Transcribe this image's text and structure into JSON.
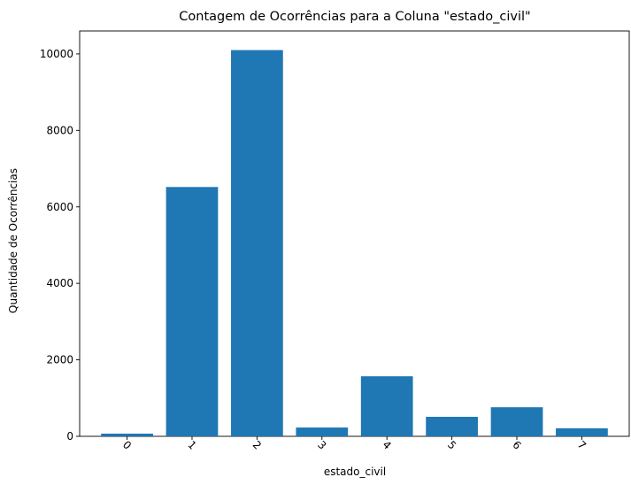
{
  "chart_data": {
    "type": "bar",
    "title": "Contagem de Ocorrências para a Coluna \"estado_civil\"",
    "xlabel": "estado_civil",
    "ylabel": "Quantidade de Ocorrências",
    "categories": [
      "0",
      "1",
      "2",
      "3",
      "4",
      "5",
      "6",
      "7"
    ],
    "values": [
      70,
      6520,
      10100,
      230,
      1570,
      510,
      760,
      210
    ],
    "ylim": [
      0,
      10600
    ],
    "yticks": [
      0,
      2000,
      4000,
      6000,
      8000,
      10000
    ],
    "xtick_rotation": 45,
    "grid": false,
    "bar_color": "#1f77b4"
  }
}
